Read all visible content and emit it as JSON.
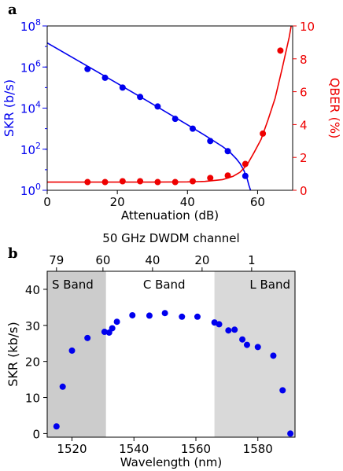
{
  "panels": [
    {
      "letter": "a"
    },
    {
      "letter": "b"
    }
  ],
  "chart_data": [
    {
      "type": "scatter",
      "panel": "a",
      "xlabel": "Attenuation (dB)",
      "xlim": [
        0,
        70
      ],
      "x_ticks": [
        0,
        20,
        40,
        60
      ],
      "ylabel_left": "SKR (b/s)",
      "ylim_left": [
        1,
        100000000
      ],
      "yscale_left": "log",
      "y_ticks_left": [
        {
          "value": 1,
          "base": "10",
          "exp": "0"
        },
        {
          "value": 100,
          "base": "10",
          "exp": "2"
        },
        {
          "value": 10000,
          "base": "10",
          "exp": "4"
        },
        {
          "value": 1000000,
          "base": "10",
          "exp": "6"
        },
        {
          "value": 100000000,
          "base": "10",
          "exp": "8"
        }
      ],
      "ylabel_right": "QBER (%)",
      "ylim_right": [
        0,
        10
      ],
      "y_ticks_right": [
        0,
        2,
        4,
        6,
        8,
        10
      ],
      "grid": false,
      "colors": {
        "skr": "#0000ee",
        "qber": "#ee0000"
      },
      "series": [
        {
          "axis": "left",
          "color": "#0000ee",
          "x": [
            11.5,
            16.5,
            21.5,
            26.5,
            31.5,
            36.5,
            41.5,
            46.5,
            51.5,
            56.5
          ],
          "y": [
            800000,
            300000,
            100000,
            35000,
            12000,
            3000,
            1000,
            250,
            80,
            5
          ]
        },
        {
          "axis": "right",
          "color": "#ee0000",
          "x": [
            11.5,
            16.5,
            21.5,
            26.5,
            31.5,
            36.5,
            41.5,
            46.5,
            51.5,
            56.5,
            61.5,
            66.5
          ],
          "y": [
            0.5,
            0.5,
            0.55,
            0.55,
            0.5,
            0.5,
            0.55,
            0.75,
            0.9,
            1.6,
            3.45,
            8.5
          ]
        }
      ],
      "fits": [
        {
          "axis": "left",
          "color": "#0000ee",
          "x": [
            0,
            10,
            20,
            30,
            40,
            45,
            50,
            52,
            54,
            55,
            56,
            57,
            57.5,
            58
          ],
          "y": [
            15000000,
            1550000,
            160000,
            16000,
            1550,
            470,
            135,
            75,
            33,
            20,
            10,
            3.8,
            1.8,
            1
          ]
        },
        {
          "axis": "right",
          "color": "#ee0000",
          "x": [
            0,
            10,
            20,
            30,
            40,
            45,
            50,
            53,
            55,
            57,
            59,
            61,
            63,
            65,
            67,
            69,
            70
          ],
          "y": [
            0.5,
            0.5,
            0.5,
            0.5,
            0.51,
            0.54,
            0.65,
            0.85,
            1.1,
            1.55,
            2.3,
            3.1,
            4.3,
            5.6,
            7.4,
            9.3,
            10.5
          ]
        }
      ]
    },
    {
      "type": "scatter",
      "panel": "b",
      "xlabel": "Wavelength (nm)",
      "xlim": [
        1512,
        1592
      ],
      "x_ticks": [
        1520,
        1540,
        1560,
        1580
      ],
      "ylabel": "SKR (kb/s)",
      "ylim": [
        -1,
        45
      ],
      "y_ticks": [
        0,
        10,
        20,
        30,
        40
      ],
      "top_axis_label": "50 GHz DWDM channel",
      "top_axis_ticks": [
        {
          "label": "79",
          "wavelength": 1515
        },
        {
          "label": "60",
          "wavelength": 1530
        },
        {
          "label": "40",
          "wavelength": 1546
        },
        {
          "label": "20",
          "wavelength": 1562
        },
        {
          "label": "1",
          "wavelength": 1578
        }
      ],
      "bands": [
        {
          "label": "S Band",
          "from": 1512,
          "to": 1531,
          "color": "#cccccc"
        },
        {
          "label": "C Band",
          "from": 1531,
          "to": 1566,
          "color": "#ffffff"
        },
        {
          "label": "L Band",
          "from": 1566,
          "to": 1592,
          "color": "#d9d9d9"
        }
      ],
      "grid": false,
      "color": "#0000ee",
      "x": [
        1515,
        1517,
        1520,
        1525,
        1530.5,
        1532,
        1533,
        1534.5,
        1539.5,
        1545,
        1550,
        1555.5,
        1560.5,
        1566,
        1567.5,
        1570.5,
        1572.5,
        1575,
        1576.5,
        1580,
        1585,
        1588,
        1590.5
      ],
      "y": [
        2,
        13,
        23,
        26.5,
        28.2,
        28,
        29.2,
        31,
        32.8,
        32.7,
        33.4,
        32.4,
        32.4,
        30.8,
        30.3,
        28.6,
        28.8,
        26.1,
        24.6,
        24,
        21.6,
        12,
        0
      ]
    }
  ]
}
